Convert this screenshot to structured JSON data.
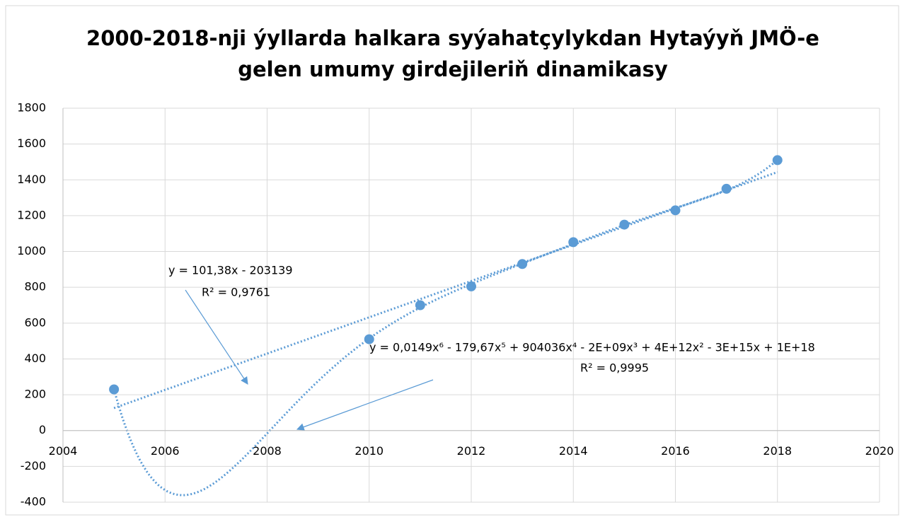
{
  "chart_data": {
    "type": "scatter",
    "title": [
      "2000-2018-nji ýyllarda halkara syýahatçylykdan Hytaýyň JMÖ-e",
      "gelen umumy girdejileriň dinamikasy"
    ],
    "x": [
      2005,
      2010,
      2011,
      2012,
      2013,
      2014,
      2015,
      2016,
      2017,
      2018
    ],
    "series": [
      {
        "color": "#5b9bd5",
        "values": [
          230,
          510,
          700,
          805,
          930,
          1052,
          1150,
          1230,
          1350,
          1510
        ]
      }
    ],
    "xlim": [
      2004,
      2020
    ],
    "xticks": [
      2004,
      2006,
      2008,
      2010,
      2012,
      2014,
      2016,
      2018,
      2020
    ],
    "ylim": [
      -400,
      1800
    ],
    "yticks": [
      -400,
      -200,
      0,
      200,
      400,
      600,
      800,
      1000,
      1200,
      1400,
      1600,
      1800
    ],
    "grid": true,
    "trendlines": [
      {
        "type": "linear",
        "order": 1,
        "equation": "y = 101,38x - 203139",
        "r2": "R² = 0,9761"
      },
      {
        "type": "polynomial",
        "order": 6,
        "equation": "y = 0,0149x⁶ - 179,67x⁵ + 904036x⁴ - 2E+09x³ + 4E+12x² - 3E+15x + 1E+18",
        "r2": "R² = 0,9995"
      }
    ]
  }
}
